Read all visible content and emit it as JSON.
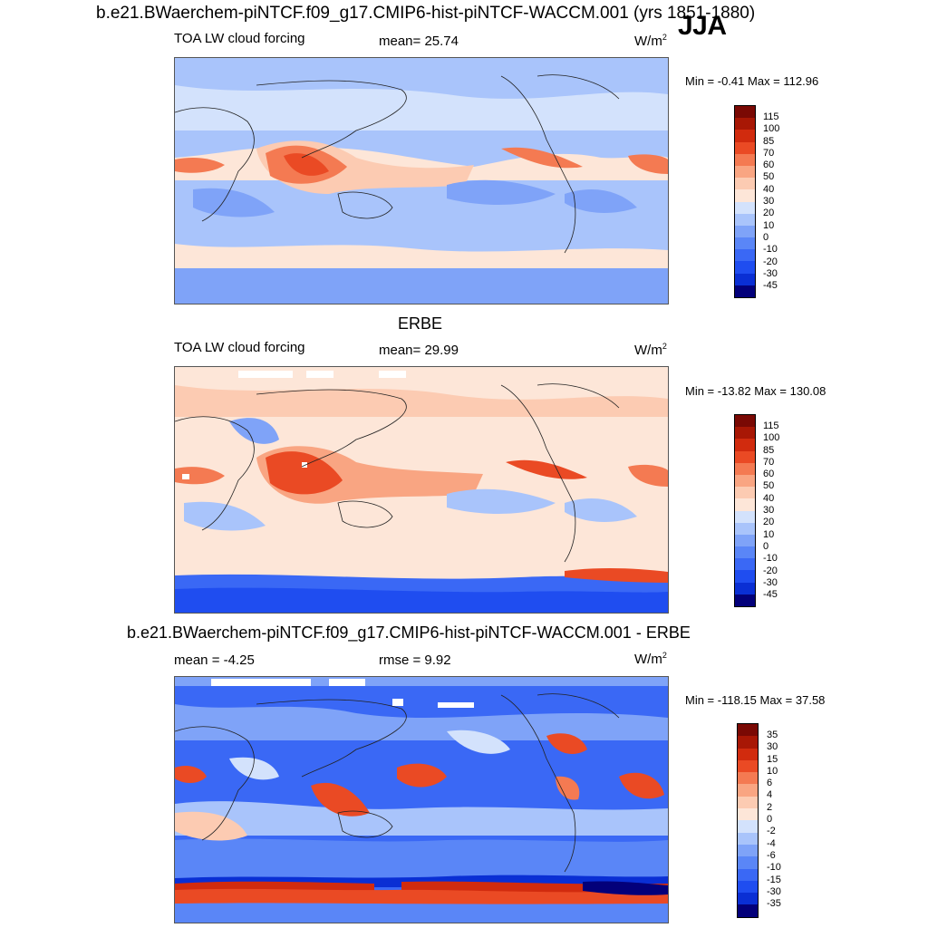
{
  "header": {
    "title": "b.e21.BWaerchem-piNTCF.f09_g17.CMIP6-hist-piNTCF-WACCM.001 (yrs 1851-1880)",
    "season": "JJA"
  },
  "colors": {
    "scale_main": [
      "#03007a",
      "#0a2fd4",
      "#1f4df0",
      "#3a68f5",
      "#5a86f7",
      "#7fa3f8",
      "#a9c4fb",
      "#d3e2fc",
      "#fde6d8",
      "#fccbb2",
      "#f9a582",
      "#f47a52",
      "#ea4a24",
      "#d12b0e",
      "#a81705",
      "#7a0904"
    ],
    "ocean_fill": "#a9c4fb"
  },
  "panels": [
    {
      "label_left": "TOA LW cloud forcing",
      "label_mid": "mean=  25.74",
      "units": "W/m",
      "units_sup": "2",
      "minmax": "Min =  -0.41 Max = 112.96",
      "colorbar_labels": [
        "115",
        "100",
        "85",
        "70",
        "60",
        "50",
        "40",
        "30",
        "20",
        "10",
        "0",
        "-10",
        "-20",
        "-30",
        "-45"
      ]
    },
    {
      "heading": "ERBE",
      "label_left": "TOA LW cloud forcing",
      "label_mid": "mean=  29.99",
      "units": "W/m",
      "units_sup": "2",
      "minmax": "Min = -13.82 Max = 130.08",
      "colorbar_labels": [
        "115",
        "100",
        "85",
        "70",
        "60",
        "50",
        "40",
        "30",
        "20",
        "10",
        "0",
        "-10",
        "-20",
        "-30",
        "-45"
      ]
    },
    {
      "heading": "b.e21.BWaerchem-piNTCF.f09_g17.CMIP6-hist-piNTCF-WACCM.001 - ERBE",
      "label_left": "mean =  -4.25",
      "label_mid": "rmse =   9.92",
      "units": "W/m",
      "units_sup": "2",
      "minmax": "Min = -118.15 Max =  37.58",
      "colorbar_labels": [
        "35",
        "30",
        "15",
        "10",
        "6",
        "4",
        "2",
        "0",
        "-2",
        "-4",
        "-6",
        "-10",
        "-15",
        "-30",
        "-35"
      ]
    }
  ]
}
